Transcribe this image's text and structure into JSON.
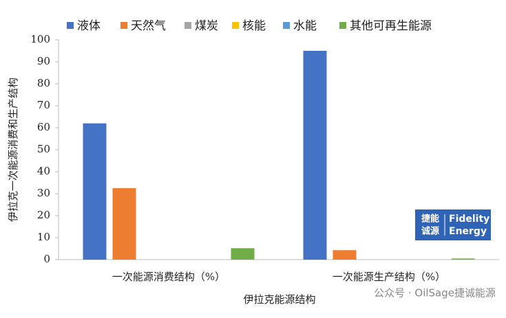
{
  "chart_data": {
    "type": "bar",
    "y_label": "伊拉克一次能源消费和生产结构",
    "x_label": "伊拉克能源结构",
    "categories": [
      "一次能源消费结构（%）",
      "一次能源生产结构（%）"
    ],
    "series": [
      {
        "name": "液体",
        "color": "#4472c4",
        "values": [
          62,
          95
        ]
      },
      {
        "name": "天然气",
        "color": "#ed7d31",
        "values": [
          32.5,
          4.3
        ]
      },
      {
        "name": "煤炭",
        "color": "#a5a5a5",
        "values": [
          0,
          0
        ]
      },
      {
        "name": "核能",
        "color": "#ffc000",
        "values": [
          0,
          0
        ]
      },
      {
        "name": "水能",
        "color": "#5b9bd5",
        "values": [
          0,
          0
        ]
      },
      {
        "name": "其他可再生能源",
        "color": "#70ad47",
        "values": [
          5.2,
          0.5
        ]
      }
    ],
    "ylim": [
      0,
      100
    ],
    "yticks": [
      0,
      10,
      20,
      30,
      40,
      50,
      60,
      70,
      80,
      90,
      100
    ],
    "grid": false,
    "legend": "top"
  },
  "watermark": {
    "logo": [
      "捷能",
      "诚源",
      "Fidelity",
      "Energy"
    ],
    "text": "公众号 · OilSage捷诚能源"
  }
}
